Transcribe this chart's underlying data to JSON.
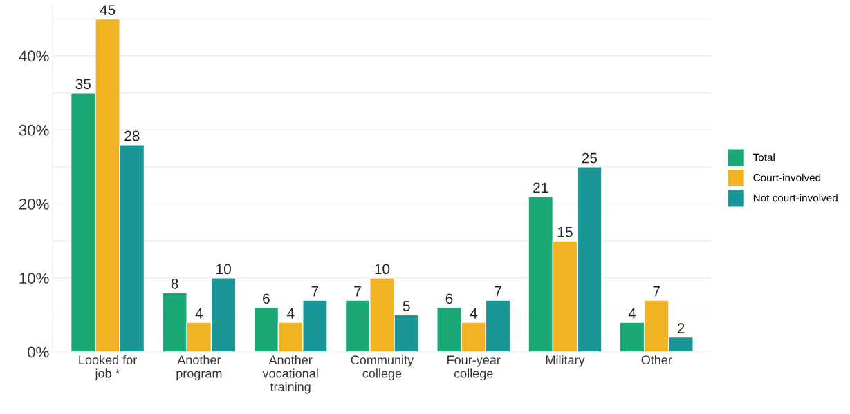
{
  "chart_data": {
    "type": "bar",
    "categories": [
      "Looked for\njob *",
      "Another\nprogram",
      "Another\nvocational\ntraining",
      "Community\ncollege",
      "Four-year\ncollege",
      "Military",
      "Other"
    ],
    "series": [
      {
        "name": "Total",
        "color": "#1aa874",
        "values": [
          35,
          8,
          6,
          7,
          6,
          21,
          4
        ]
      },
      {
        "name": "Court-involved",
        "color": "#f0b323",
        "values": [
          45,
          4,
          4,
          10,
          4,
          15,
          7
        ]
      },
      {
        "name": "Not court-involved",
        "color": "#1a9696",
        "values": [
          28,
          10,
          7,
          5,
          7,
          25,
          2
        ]
      }
    ],
    "ylim": [
      0,
      47
    ],
    "yticks": [
      {
        "value": 0,
        "label": "0%"
      },
      {
        "value": 5,
        "label": null
      },
      {
        "value": 10,
        "label": "10%"
      },
      {
        "value": 15,
        "label": null
      },
      {
        "value": 20,
        "label": "20%"
      },
      {
        "value": 25,
        "label": null
      },
      {
        "value": 30,
        "label": "30%"
      },
      {
        "value": 35,
        "label": null
      },
      {
        "value": 40,
        "label": "40%"
      },
      {
        "value": 45,
        "label": null
      }
    ],
    "data_labels": true,
    "grid": "y",
    "legend": "right"
  }
}
